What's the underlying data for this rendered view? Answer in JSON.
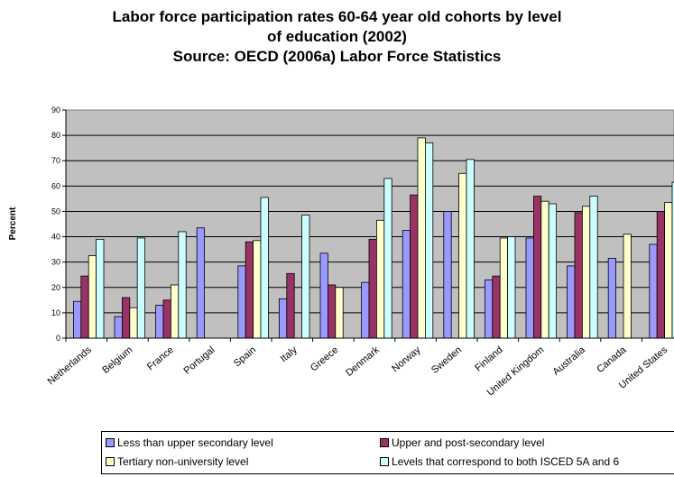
{
  "title_lines": [
    "Labor force participation rates 60-64 year old cohorts by level",
    "of education (2002)",
    "Source: OECD (2006a) Labor Force Statistics"
  ],
  "chart_data": {
    "type": "bar",
    "title": "Labor force participation rates 60-64 year old cohorts by level of education (2002) Source: OECD (2006a) Labor Force Statistics",
    "xlabel": "",
    "ylabel": "Percent",
    "ylim": [
      0,
      90
    ],
    "yticks": [
      "0",
      "10",
      "20",
      "30",
      "40",
      "50",
      "60",
      "70",
      "80",
      "90"
    ],
    "grid": true,
    "legend_position": "bottom",
    "categories": [
      "Netherlands",
      "Belgium",
      "France",
      "Portugal",
      "Spain",
      "Italy",
      "Greece",
      "Denmark",
      "Norway",
      "Sweden",
      "Finland",
      "United Kingdom",
      "Australia",
      "Canada",
      "United States"
    ],
    "series": [
      {
        "name": "Less than upper secondary level",
        "color": "#9999ff",
        "values": [
          14.5,
          8.5,
          13,
          43.5,
          28.5,
          15.5,
          33.5,
          22,
          42.5,
          50,
          23,
          39.5,
          28.5,
          31.5,
          37
        ]
      },
      {
        "name": "Upper and post-secondary level",
        "color": "#993366",
        "values": [
          24.5,
          16,
          15,
          null,
          38,
          25.5,
          21,
          39,
          56.5,
          null,
          24.5,
          56,
          49.5,
          null,
          50
        ]
      },
      {
        "name": "Tertiary non-university level",
        "color": "#ffffcc",
        "values": [
          32.5,
          12,
          21,
          null,
          38.5,
          null,
          20,
          46.5,
          79,
          65,
          39.5,
          54,
          52,
          41,
          53.5
        ]
      },
      {
        "name": "Levels that correspond to both ISCED 5A and 6",
        "color": "#ccffff",
        "values": [
          39,
          39.5,
          42,
          null,
          55.5,
          48.5,
          null,
          63,
          77,
          70.5,
          40,
          53,
          56,
          null,
          61.5
        ]
      }
    ]
  }
}
